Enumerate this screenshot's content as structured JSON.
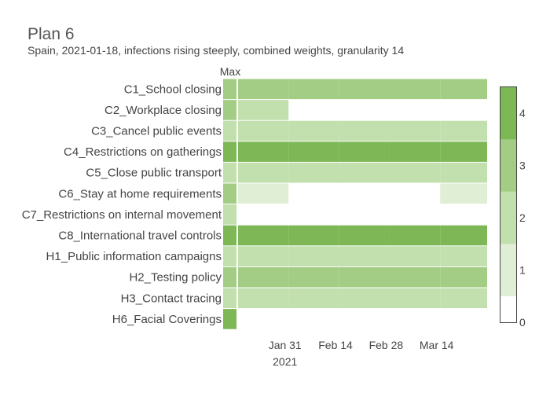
{
  "chart_data": {
    "type": "heatmap",
    "title": "Plan 6",
    "subtitle": "Spain, 2021-01-18, infections rising steeply, combined weights, granularity 14",
    "max_column_label": "Max",
    "rows": [
      {
        "label": "C1_School closing",
        "max": 3,
        "segments": [
          3,
          3,
          3,
          3,
          3
        ]
      },
      {
        "label": "C2_Workplace closing",
        "max": 3,
        "segments": [
          2,
          0,
          0,
          0,
          0
        ]
      },
      {
        "label": "C3_Cancel public events",
        "max": 2,
        "segments": [
          2,
          2,
          2,
          2,
          2
        ]
      },
      {
        "label": "C4_Restrictions on gatherings",
        "max": 4,
        "segments": [
          4,
          4,
          4,
          4,
          4
        ]
      },
      {
        "label": "C5_Close public transport",
        "max": 2,
        "segments": [
          2,
          2,
          2,
          2,
          2
        ]
      },
      {
        "label": "C6_Stay at home requirements",
        "max": 3,
        "segments": [
          1,
          0,
          0,
          0,
          1
        ]
      },
      {
        "label": "C7_Restrictions on internal movement",
        "max": 2,
        "segments": [
          0,
          0,
          0,
          0,
          0
        ]
      },
      {
        "label": "C8_International travel controls",
        "max": 4,
        "segments": [
          4,
          4,
          4,
          4,
          4
        ]
      },
      {
        "label": "H1_Public information campaigns",
        "max": 2,
        "segments": [
          2,
          2,
          2,
          2,
          2
        ]
      },
      {
        "label": "H2_Testing policy",
        "max": 3,
        "segments": [
          3,
          3,
          3,
          3,
          3
        ]
      },
      {
        "label": "H3_Contact tracing",
        "max": 2,
        "segments": [
          2,
          2,
          2,
          2,
          2
        ]
      },
      {
        "label": "H6_Facial Coverings",
        "max": 4,
        "segments": [
          0,
          0,
          0,
          0,
          0
        ]
      }
    ],
    "segment_starts": [
      "2021-01-18",
      "2021-02-01",
      "2021-02-15",
      "2021-03-01",
      "2021-03-15"
    ],
    "x_range": [
      "2021-01-18",
      "2021-03-28"
    ],
    "x_ticks": [
      {
        "date": "2021-01-31",
        "label": "Jan 31",
        "sublabel": "2021"
      },
      {
        "date": "2021-02-14",
        "label": "Feb 14",
        "sublabel": ""
      },
      {
        "date": "2021-02-28",
        "label": "Feb 28",
        "sublabel": ""
      },
      {
        "date": "2021-03-14",
        "label": "Mar 14",
        "sublabel": ""
      }
    ],
    "colorscale": {
      "range": [
        0,
        4.5
      ],
      "ticks": [
        "0",
        "1",
        "2",
        "3",
        "4"
      ],
      "bands": [
        {
          "from": 0,
          "to": 0.5,
          "color": "#ffffff"
        },
        {
          "from": 0.5,
          "to": 1.5,
          "color": "#dfeed5"
        },
        {
          "from": 1.5,
          "to": 2.5,
          "color": "#c2dfae"
        },
        {
          "from": 2.5,
          "to": 3.5,
          "color": "#a3cd85"
        },
        {
          "from": 3.5,
          "to": 4.5,
          "color": "#7db756"
        }
      ]
    },
    "grid": false,
    "legend": "right"
  }
}
